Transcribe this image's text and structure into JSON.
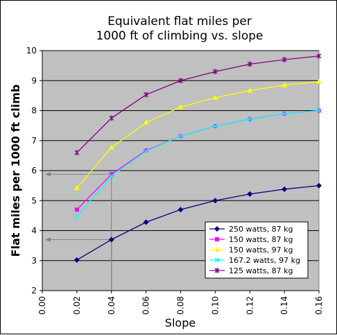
{
  "chart_data": {
    "type": "line",
    "title": [
      "Equivalent flat miles per",
      "1000 ft of climbing vs. slope"
    ],
    "xlabel": "Slope",
    "ylabel": "Flat miles per 1000 ft climb",
    "xlim": [
      0,
      0.16
    ],
    "ylim": [
      2,
      10
    ],
    "xticks": [
      "0.00",
      "0.02",
      "0.04",
      "0.06",
      "0.08",
      "0.10",
      "0.12",
      "0.14",
      "0.16"
    ],
    "yticks": [
      "2",
      "3",
      "4",
      "5",
      "6",
      "7",
      "8",
      "9",
      "10"
    ],
    "grid": "horizontal",
    "legend_position": "bottom-right",
    "x": [
      0.02,
      0.04,
      0.06,
      0.08,
      0.1,
      0.12,
      0.14,
      0.16
    ],
    "series": [
      {
        "name": "250 watts, 87 kg",
        "color": "#000080",
        "marker": "diamond",
        "values": [
          3.02,
          3.7,
          4.28,
          4.7,
          5.0,
          5.22,
          5.38,
          5.5
        ]
      },
      {
        "name": "150 watts, 87 kg",
        "color": "#ff00ff",
        "marker": "square",
        "values": [
          4.7,
          5.88,
          6.67,
          7.15,
          7.48,
          7.72,
          7.9,
          8.0
        ]
      },
      {
        "name": "150 watts, 97 kg",
        "color": "#ffff00",
        "marker": "triangle",
        "values": [
          5.42,
          6.77,
          7.6,
          8.12,
          8.43,
          8.67,
          8.85,
          8.97
        ]
      },
      {
        "name": "167.2 watts, 97 kg",
        "color": "#00ffff",
        "marker": "x",
        "values": [
          4.47,
          5.82,
          6.65,
          7.15,
          7.48,
          7.72,
          7.9,
          8.0
        ]
      },
      {
        "name": "125 watts, 87 kg",
        "color": "#800080",
        "marker": "star",
        "values": [
          6.6,
          7.75,
          8.53,
          9.0,
          9.3,
          9.55,
          9.7,
          9.82
        ]
      }
    ],
    "annotations": [
      {
        "type": "guide-arrow",
        "x": 0.04,
        "y": 5.88,
        "color": "#808080"
      },
      {
        "type": "guide-arrow",
        "x": 0.04,
        "y": 3.7,
        "color": "#808080"
      }
    ]
  }
}
